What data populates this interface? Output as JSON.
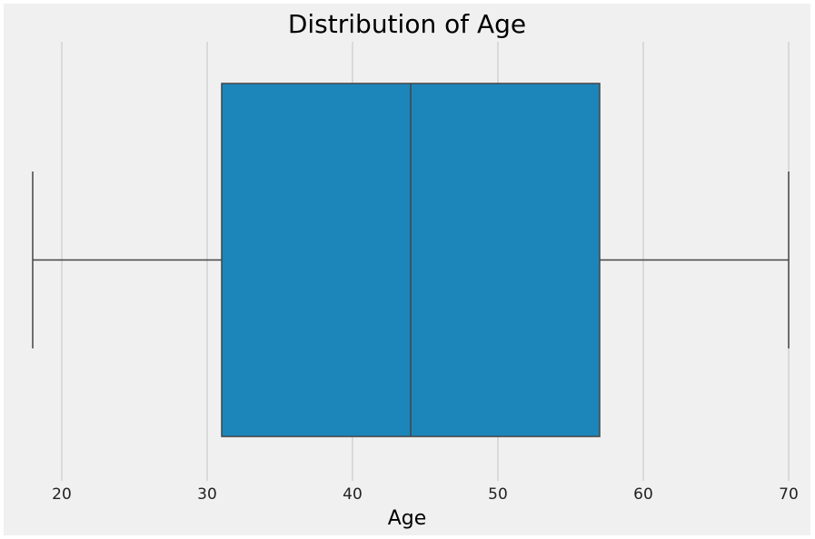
{
  "chart_data": {
    "type": "box",
    "title": "Distribution of Age",
    "xlabel": "Age",
    "ylabel": "",
    "orientation": "horizontal",
    "xlim": [
      16,
      71.5
    ],
    "xticks": [
      20,
      30,
      40,
      50,
      60,
      70
    ],
    "grid": "vertical",
    "series": [
      {
        "whisker_low": 18,
        "q1": 31,
        "median": 44,
        "q3": 57,
        "whisker_high": 70
      }
    ],
    "colors": {
      "box_fill": "#1c86bb",
      "line": "#444444",
      "grid": "#cbcbcb",
      "background": "#f0f0f0"
    }
  }
}
